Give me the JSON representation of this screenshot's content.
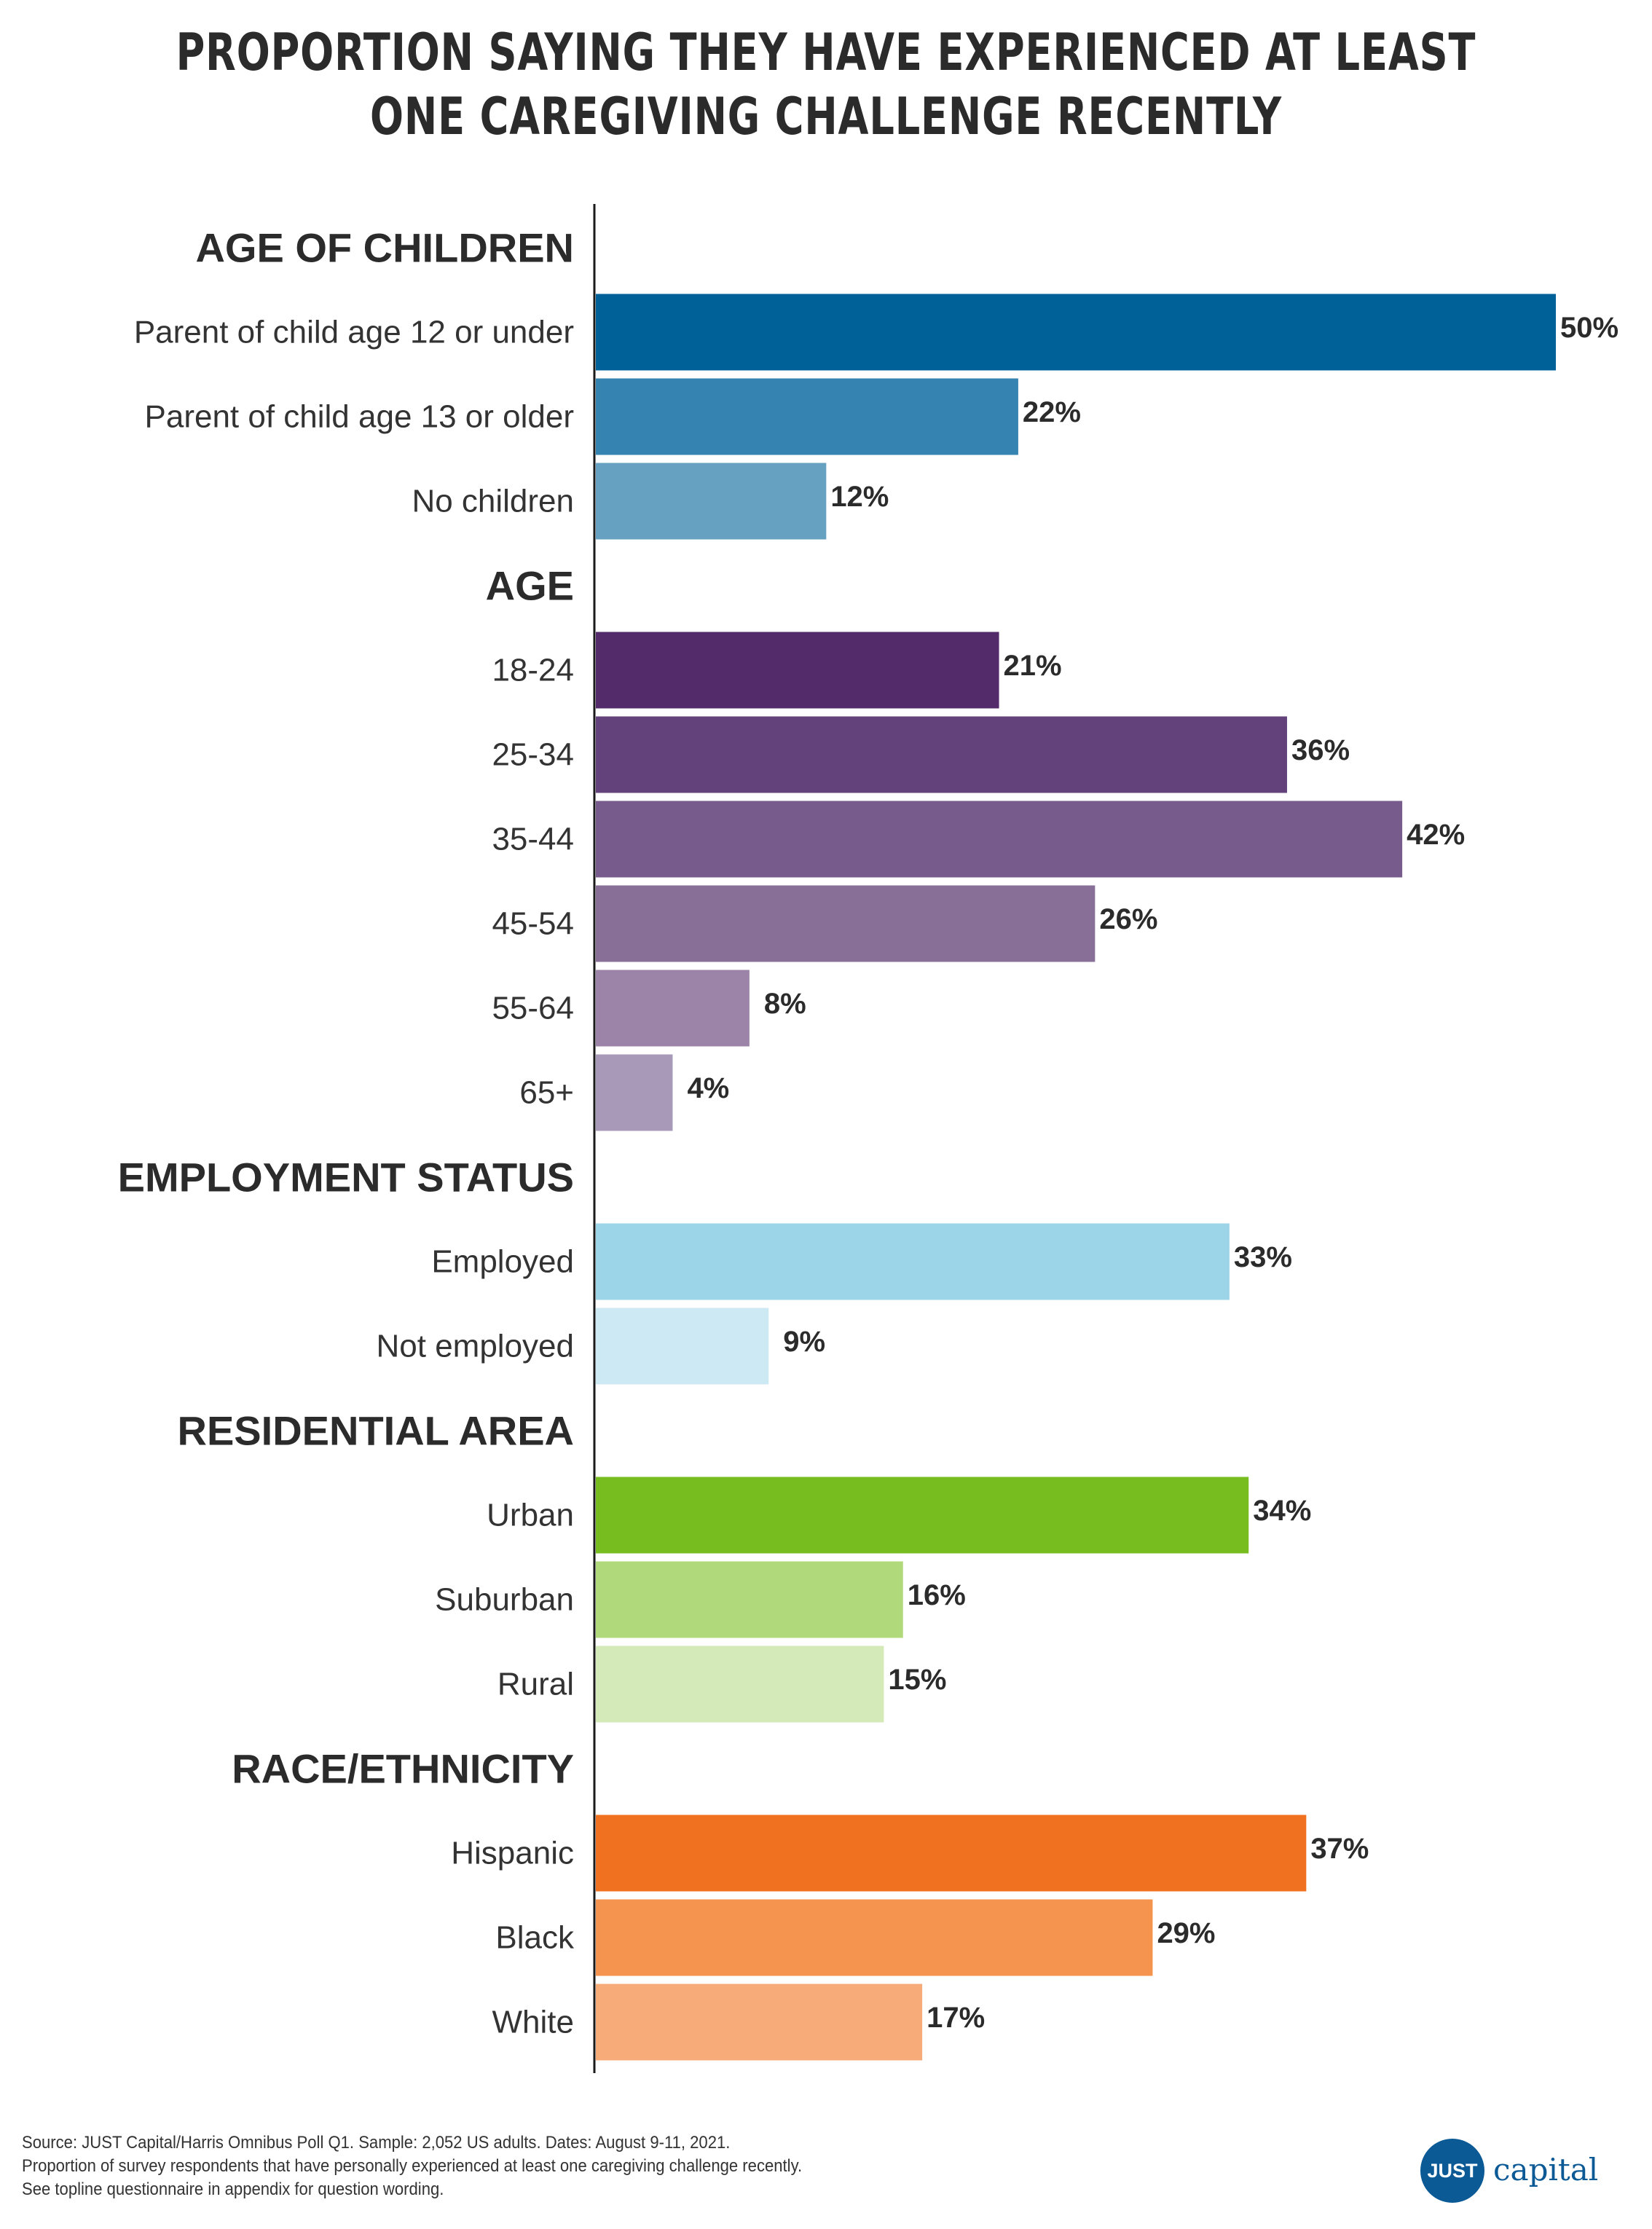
{
  "title_lines": [
    "PROPORTION SAYING THEY HAVE EXPERIENCED AT LEAST",
    "ONE CAREGIVING CHALLENGE RECENTLY"
  ],
  "chart_data": {
    "type": "bar",
    "orientation": "horizontal",
    "title": "PROPORTION SAYING THEY HAVE EXPERIENCED AT LEAST ONE CAREGIVING CHALLENGE RECENTLY",
    "value_suffix": "%",
    "xlim": [
      0,
      50
    ],
    "grid": false,
    "groups": [
      {
        "name": "AGE OF CHILDREN",
        "bars": [
          {
            "label": "Parent of child age 12 or under",
            "value": 50,
            "color": "#006199"
          },
          {
            "label": "Parent of child age 13 or older",
            "value": 22,
            "color": "#3483b1"
          },
          {
            "label": "No children",
            "value": 12,
            "color": "#67a1c2"
          }
        ]
      },
      {
        "name": "AGE",
        "bars": [
          {
            "label": "18-24",
            "value": 21,
            "color": "#532b6b"
          },
          {
            "label": "25-34",
            "value": 36,
            "color": "#63427c"
          },
          {
            "label": "35-44",
            "value": 42,
            "color": "#765b8c"
          },
          {
            "label": "45-54",
            "value": 26,
            "color": "#886f97"
          },
          {
            "label": "55-64",
            "value": 8,
            "color": "#9b84a8"
          },
          {
            "label": "65+",
            "value": 4,
            "color": "#a899b8"
          }
        ]
      },
      {
        "name": "EMPLOYMENT STATUS",
        "bars": [
          {
            "label": "Employed",
            "value": 33,
            "color": "#9cd5e8"
          },
          {
            "label": "Not employed",
            "value": 9,
            "color": "#cde9f3"
          }
        ]
      },
      {
        "name": "RESIDENTIAL AREA",
        "bars": [
          {
            "label": "Urban",
            "value": 34,
            "color": "#77bd20"
          },
          {
            "label": "Suburban",
            "value": 16,
            "color": "#b0d97c"
          },
          {
            "label": "Rural",
            "value": 15,
            "color": "#d5eab9"
          }
        ]
      },
      {
        "name": "RACE/ETHNICITY",
        "bars": [
          {
            "label": "Hispanic",
            "value": 37,
            "color": "#f07120"
          },
          {
            "label": "Black",
            "value": 29,
            "color": "#f4944f"
          },
          {
            "label": "White",
            "value": 17,
            "color": "#f7ab79"
          }
        ]
      }
    ]
  },
  "source_lines": [
    "Source: JUST Capital/Harris Omnibus Poll Q1. Sample: 2,052 US adults. Dates: August 9-11, 2021.",
    "Proportion of survey respondents that have personally experienced at least one caregiving challenge recently.",
    "See topline questionnaire in appendix for question wording."
  ],
  "logo": {
    "mark": "JUST",
    "word": "capital",
    "color": "#0b5a96"
  }
}
